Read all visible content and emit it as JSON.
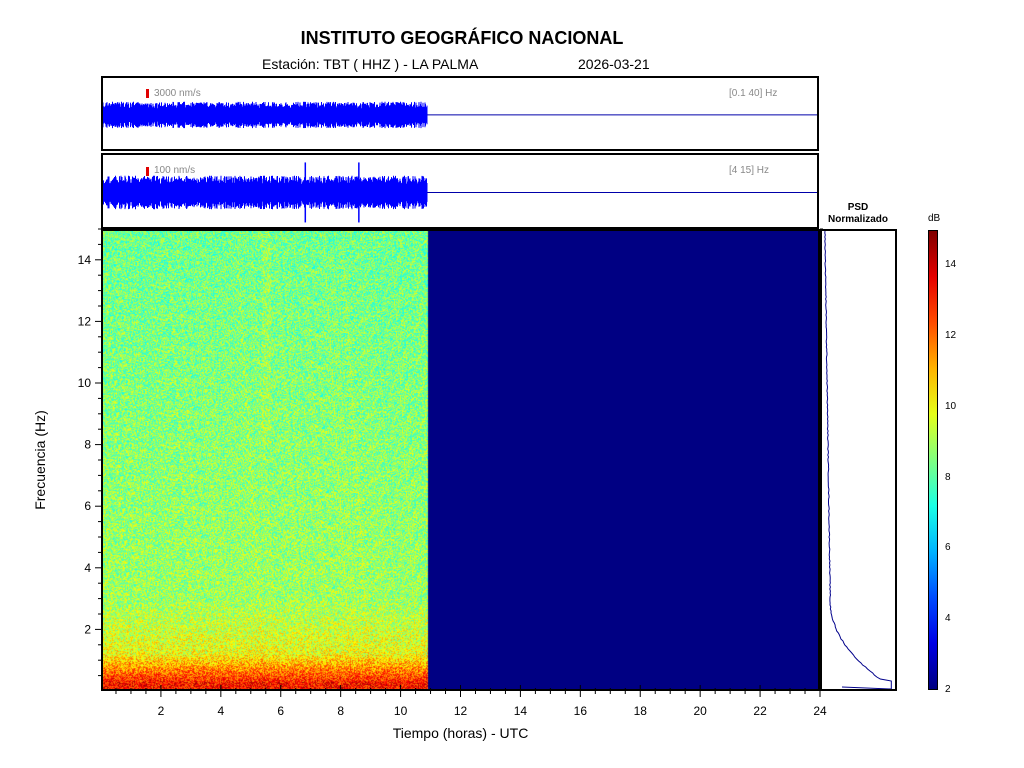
{
  "header": {
    "title": "INSTITUTO GEOGRÁFICO NACIONAL",
    "station": "Estación:  TBT ( HHZ ) - LA PALMA",
    "date": "2026-03-21"
  },
  "traces": [
    {
      "scale": "3000 nm/s",
      "band": "[0.1 40] Hz",
      "data_end_hour": 10.9
    },
    {
      "scale": "100 nm/s",
      "band": "[4 15] Hz",
      "data_end_hour": 10.9,
      "spikes_hour": [
        6.8,
        8.6
      ]
    }
  ],
  "chart_data": {
    "type": "heatmap",
    "title": "INSTITUTO GEOGRÁFICO NACIONAL",
    "xlabel": "Tiempo (horas) - UTC",
    "ylabel": "Frecuencia  (Hz)",
    "xlim": [
      0,
      24
    ],
    "ylim": [
      0,
      15
    ],
    "x_ticks": [
      "2",
      "4",
      "6",
      "8",
      "10",
      "12",
      "14",
      "16",
      "18",
      "20",
      "22",
      "24"
    ],
    "y_ticks": [
      "2",
      "4",
      "6",
      "8",
      "10",
      "12",
      "14"
    ],
    "data_end_hour": 10.9,
    "colorbar": {
      "label": "dB",
      "range": [
        2,
        15
      ],
      "ticks": [
        "2",
        "4",
        "6",
        "8",
        "10",
        "12",
        "14"
      ]
    },
    "psd": {
      "title_line1": "PSD",
      "title_line2": "Normalizado"
    }
  }
}
